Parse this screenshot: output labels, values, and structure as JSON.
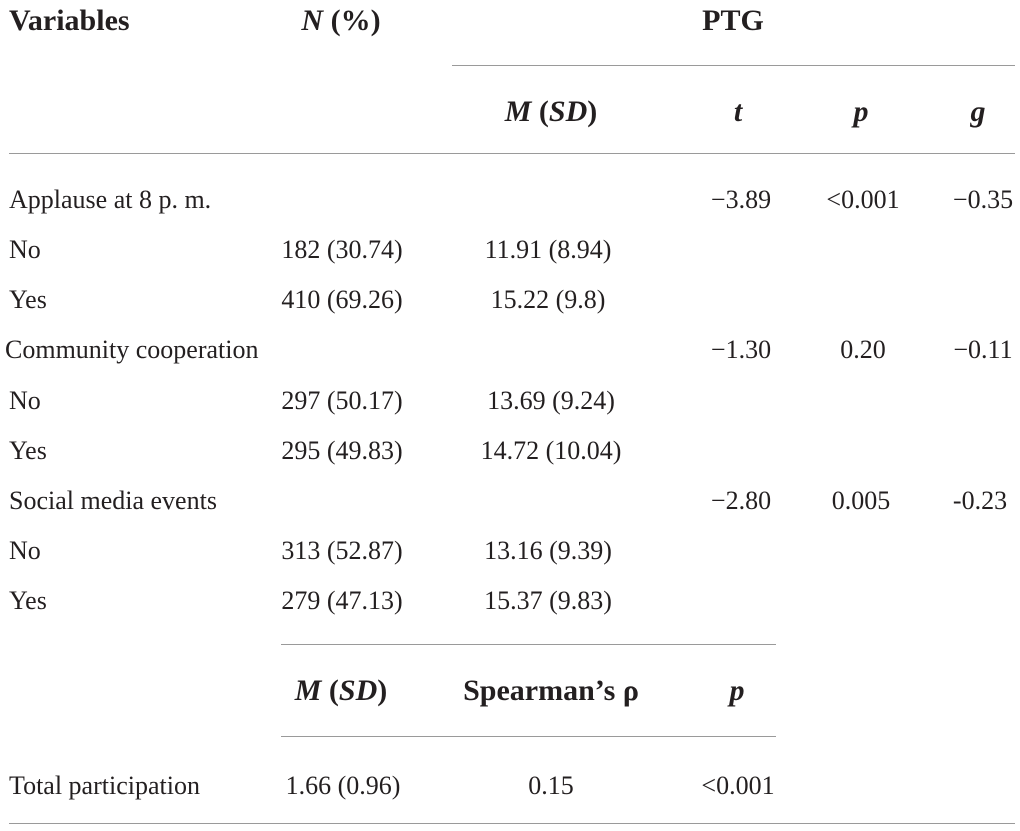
{
  "header": {
    "variables": "Variables",
    "n_pct_italic": "N",
    "n_pct_rest": " (%)",
    "ptg": "PTG",
    "msd_m": "M",
    "msd_open": " (",
    "msd_sd": "SD",
    "msd_close": ")",
    "t": "t",
    "p": "p",
    "g": "g"
  },
  "groups": [
    {
      "label": "Applause at 8 p. m.",
      "t": "−3.89",
      "p": "<0.001",
      "g": "−0.35",
      "rows": [
        {
          "label": "No",
          "n": "182 (30.74)",
          "msd": "11.91 (8.94)"
        },
        {
          "label": "Yes",
          "n": "410 (69.26)",
          "msd": "15.22 (9.8)"
        }
      ]
    },
    {
      "label": "Community cooperation",
      "t": "−1.30",
      "p": "0.20",
      "g": "−0.11",
      "rows": [
        {
          "label": "No",
          "n": "297 (50.17)",
          "msd": "13.69 (9.24)"
        },
        {
          "label": "Yes",
          "n": "295 (49.83)",
          "msd": "14.72 (10.04)"
        }
      ]
    },
    {
      "label": "Social media events",
      "t": "−2.80",
      "p": "0.005",
      "g": "-0.23",
      "rows": [
        {
          "label": "No",
          "n": "313 (52.87)",
          "msd": "13.16 (9.39)"
        },
        {
          "label": "Yes",
          "n": "279 (47.13)",
          "msd": "15.37 (9.83)"
        }
      ]
    }
  ],
  "subheader": {
    "msd_m": "M",
    "msd_open": " (",
    "msd_sd": "SD",
    "msd_close": ")",
    "spearman": "Spearman’s ρ",
    "p": "p"
  },
  "total": {
    "label": "Total participation",
    "msd": "1.66 (0.96)",
    "rho": "0.15",
    "p": "<0.001"
  }
}
